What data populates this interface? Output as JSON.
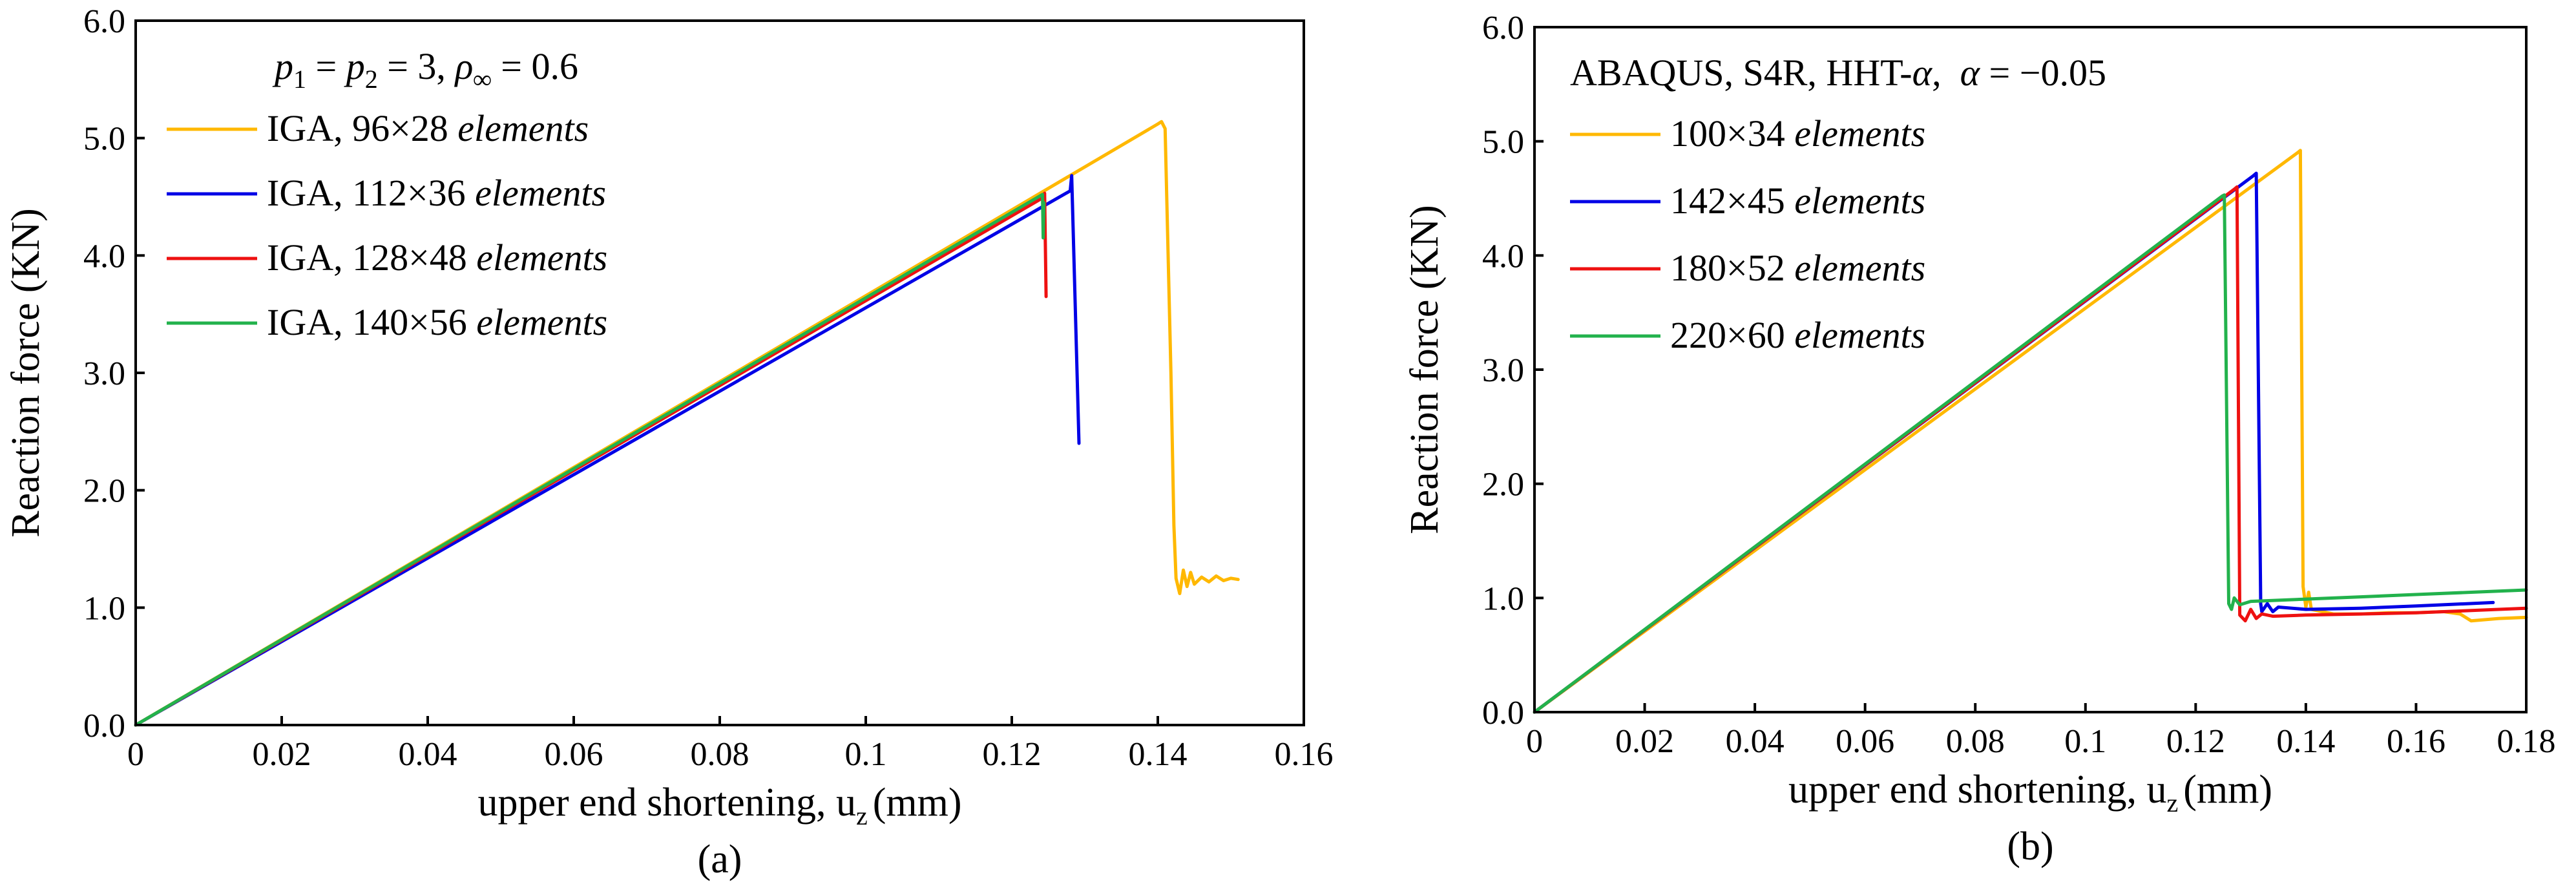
{
  "chart_data": [
    {
      "type": "line",
      "panel_label": "(a)",
      "xlabel": "upper end shortening, u",
      "xlabel_sub": "z",
      "xlabel_unit": "(mm)",
      "ylabel": "Reaction force (KN)",
      "xlim": [
        0,
        0.16
      ],
      "ylim": [
        0,
        6.0
      ],
      "xticks": [
        0,
        0.02,
        0.04,
        0.06,
        0.08,
        0.1,
        0.12,
        0.14,
        0.16
      ],
      "xtick_labels": [
        "0",
        "0.02",
        "0.04",
        "0.06",
        "0.08",
        "0.1",
        "0.12",
        "0.14",
        "0.16"
      ],
      "yticks": [
        0,
        1,
        2,
        3,
        4,
        5,
        6
      ],
      "ytick_labels": [
        "0.0",
        "1.0",
        "2.0",
        "3.0",
        "4.0",
        "5.0",
        "6.0"
      ],
      "parameter_note": {
        "p": "p",
        "sub1": "1",
        "eq1": " = ",
        "p2": "p",
        "sub2": "2",
        "eq2": " = 3, ",
        "rho": "ρ",
        "rho_sub": "∞",
        "eq3": " = 0.6"
      },
      "legend_position": "top-left",
      "series": [
        {
          "name": "IGA, 96×28 elements",
          "name_prefix": "IGA, 96×28 ",
          "name_italic": "elements",
          "color": "#FFB800",
          "x": [
            0,
            0.14,
            0.1405,
            0.141,
            0.1418,
            0.1422,
            0.1425,
            0.143,
            0.1435,
            0.144,
            0.1445,
            0.145,
            0.146,
            0.147,
            0.148,
            0.149,
            0.15,
            0.151
          ],
          "y": [
            0,
            5.12,
            5.14,
            5.08,
            3.0,
            1.7,
            1.25,
            1.12,
            1.32,
            1.18,
            1.3,
            1.2,
            1.26,
            1.22,
            1.27,
            1.23,
            1.25,
            1.24
          ]
        },
        {
          "name": "IGA, 112×36 elements",
          "name_prefix": "IGA, 112×36 ",
          "name_italic": "elements",
          "color": "#0000E6",
          "x": [
            0,
            0.128,
            0.1282,
            0.1292
          ],
          "y": [
            0,
            4.55,
            4.68,
            2.4
          ]
        },
        {
          "name": "IGA, 128×48 elements",
          "name_prefix": "IGA, 128×48 ",
          "name_italic": "elements",
          "color": "#EE1111",
          "x": [
            0,
            0.1245,
            0.1245,
            0.1247
          ],
          "y": [
            0,
            4.5,
            4.53,
            3.65
          ]
        },
        {
          "name": "IGA, 140×56 elements",
          "name_prefix": "IGA, 140×56 ",
          "name_italic": "elements",
          "color": "#22B24C",
          "x": [
            0,
            0.1242,
            0.1243,
            0.1244
          ],
          "y": [
            0,
            4.52,
            4.15,
            4.45
          ]
        }
      ]
    },
    {
      "type": "line",
      "panel_label": "(b)",
      "xlabel": "upper end shortening, u",
      "xlabel_sub": "z",
      "xlabel_unit": "(mm)",
      "ylabel": "Reaction force (KN)",
      "xlim": [
        0,
        0.18
      ],
      "ylim": [
        0,
        6.0
      ],
      "xticks": [
        0,
        0.02,
        0.04,
        0.06,
        0.08,
        0.1,
        0.12,
        0.14,
        0.16,
        0.18
      ],
      "xtick_labels": [
        "0",
        "0.02",
        "0.04",
        "0.06",
        "0.08",
        "0.1",
        "0.12",
        "0.14",
        "0.16",
        "0.18"
      ],
      "yticks": [
        0,
        1,
        2,
        3,
        4,
        5,
        6
      ],
      "ytick_labels": [
        "0.0",
        "1.0",
        "2.0",
        "3.0",
        "4.0",
        "5.0",
        "6.0"
      ],
      "parameter_note": {
        "text": "ABAQUS, S4R, HHT-",
        "alpha1": "α",
        "sep": ",  ",
        "alpha2": "α",
        "eq": " = −0.05"
      },
      "legend_position": "top-left",
      "series": [
        {
          "name": "100×34 elements",
          "name_prefix": "100×34 ",
          "name_italic": "elements",
          "color": "#FFB800",
          "x": [
            0,
            0.1385,
            0.139,
            0.1395,
            0.14,
            0.1405,
            0.141,
            0.145,
            0.15,
            0.155,
            0.16,
            0.165,
            0.168,
            0.17,
            0.175,
            0.18
          ],
          "y": [
            0,
            4.9,
            4.92,
            1.1,
            0.92,
            1.05,
            0.9,
            0.86,
            0.86,
            0.87,
            0.87,
            0.88,
            0.86,
            0.8,
            0.82,
            0.83
          ]
        },
        {
          "name": "142×45 elements",
          "name_prefix": "142×45 ",
          "name_italic": "elements",
          "color": "#0000E6",
          "x": [
            0,
            0.1305,
            0.131,
            0.1318,
            0.132,
            0.133,
            0.134,
            0.135,
            0.14,
            0.15,
            0.16,
            0.174
          ],
          "y": [
            0,
            4.7,
            4.72,
            0.95,
            0.88,
            0.95,
            0.88,
            0.92,
            0.9,
            0.91,
            0.93,
            0.96
          ]
        },
        {
          "name": "180×52 elements",
          "name_prefix": "180×52 ",
          "name_italic": "elements",
          "color": "#EE1111",
          "x": [
            0,
            0.127,
            0.1275,
            0.128,
            0.129,
            0.13,
            0.131,
            0.132,
            0.134,
            0.14,
            0.15,
            0.16,
            0.17,
            0.18
          ],
          "y": [
            0,
            4.58,
            4.6,
            0.85,
            0.8,
            0.9,
            0.82,
            0.86,
            0.84,
            0.85,
            0.86,
            0.87,
            0.89,
            0.91
          ]
        },
        {
          "name": "220×60 elements",
          "name_prefix": "220×60 ",
          "name_italic": "elements",
          "color": "#22B24C",
          "x": [
            0,
            0.1248,
            0.1252,
            0.126,
            0.1265,
            0.127,
            0.128,
            0.13,
            0.14,
            0.15,
            0.16,
            0.17,
            0.18
          ],
          "y": [
            0,
            4.52,
            4.53,
            0.95,
            0.9,
            1.0,
            0.94,
            0.97,
            0.99,
            1.01,
            1.03,
            1.05,
            1.07
          ]
        }
      ]
    }
  ]
}
